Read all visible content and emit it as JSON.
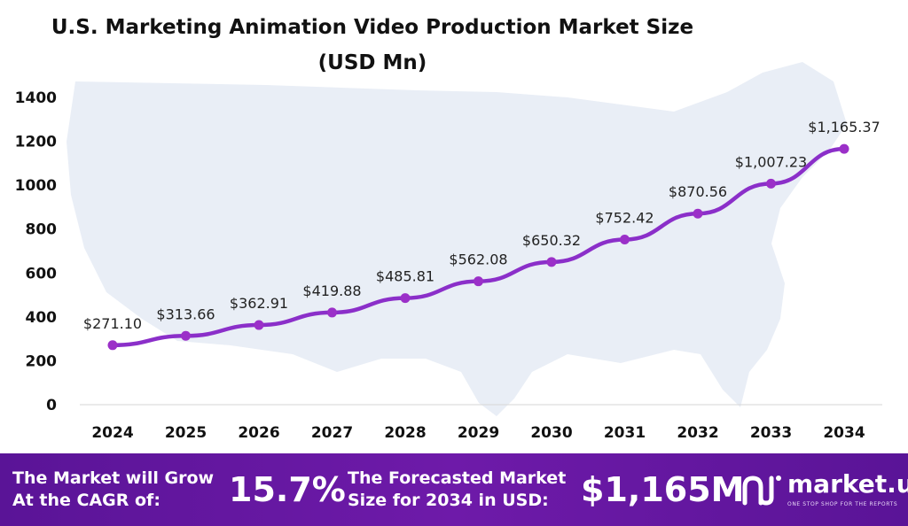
{
  "colors": {
    "line": "#8b2fc9",
    "marker": "#9b30c8",
    "map": "#e9eef6",
    "footer": "#5a1497"
  },
  "chart_data": {
    "type": "line",
    "title": "U.S. Marketing Animation Video Production Market Size",
    "subtitle": "(USD Mn)",
    "xlabel": "",
    "ylabel": "",
    "categories": [
      "2024",
      "2025",
      "2026",
      "2027",
      "2028",
      "2029",
      "2030",
      "2031",
      "2032",
      "2033",
      "2034"
    ],
    "values": [
      271.1,
      313.66,
      362.91,
      419.88,
      485.81,
      562.08,
      650.32,
      752.42,
      870.56,
      1007.23,
      1165.37
    ],
    "data_labels": [
      "$271.10",
      "$313.66",
      "$362.91",
      "$419.88",
      "$485.81",
      "$562.08",
      "$650.32",
      "$752.42",
      "$870.56",
      "$1,007.23",
      "$1,165.37"
    ],
    "ylim": [
      0,
      1400
    ],
    "yticks": [
      0,
      200,
      400,
      600,
      800,
      1000,
      1200,
      1400
    ],
    "grid": false,
    "legend": "none"
  },
  "footer": {
    "cagr_text_line1": "The Market will Grow",
    "cagr_text_line2": "At the CAGR of:",
    "cagr_value": "15.7%",
    "forecast_text_line1": "The Forecasted Market",
    "forecast_text_line2": "Size for 2034 in USD:",
    "forecast_value": "$1,165M",
    "brand_name": "market.us",
    "brand_tagline": "ONE STOP SHOP FOR THE REPORTS",
    "brand_icon": "market-us-logo-icon"
  }
}
